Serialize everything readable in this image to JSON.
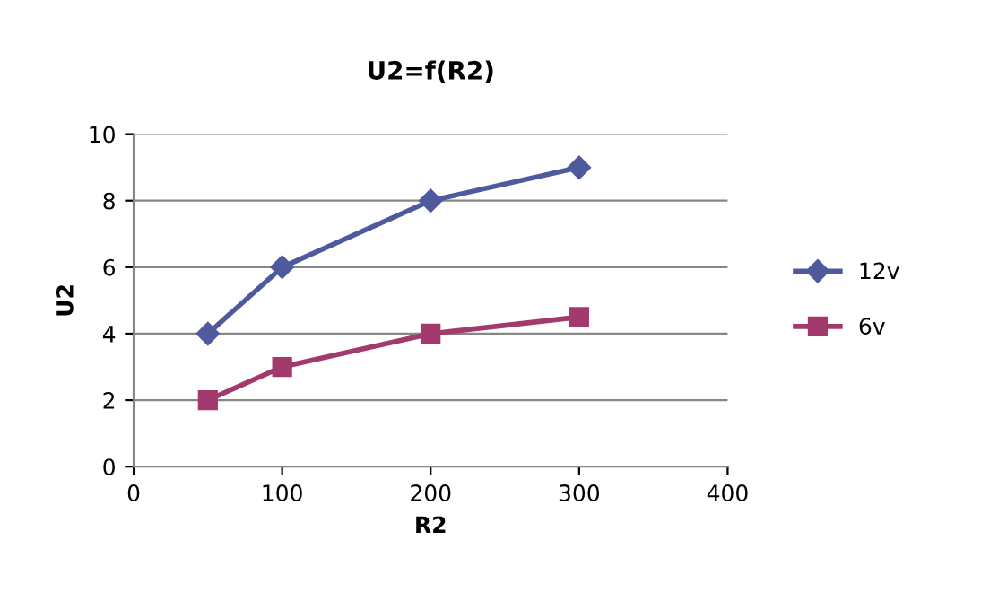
{
  "chart_data": {
    "type": "line",
    "title": "U2=f(R2)",
    "xlabel": "R2",
    "ylabel": "U2",
    "x": [
      50,
      100,
      200,
      300
    ],
    "series": [
      {
        "name": "12v",
        "color": "#4F5A9E",
        "values": [
          4,
          6,
          8,
          9
        ],
        "marker": "diamond"
      },
      {
        "name": "6v",
        "color": "#A33A6E",
        "values": [
          2,
          3,
          4,
          4.5
        ],
        "marker": "square"
      }
    ],
    "xlim": [
      0,
      400
    ],
    "xticks": [
      0,
      100,
      200,
      300,
      400
    ],
    "ylim": [
      0,
      10
    ],
    "yticks": [
      0,
      2,
      4,
      6,
      8,
      10
    ],
    "grid": "y",
    "legend": "right",
    "line_style": "solid"
  }
}
